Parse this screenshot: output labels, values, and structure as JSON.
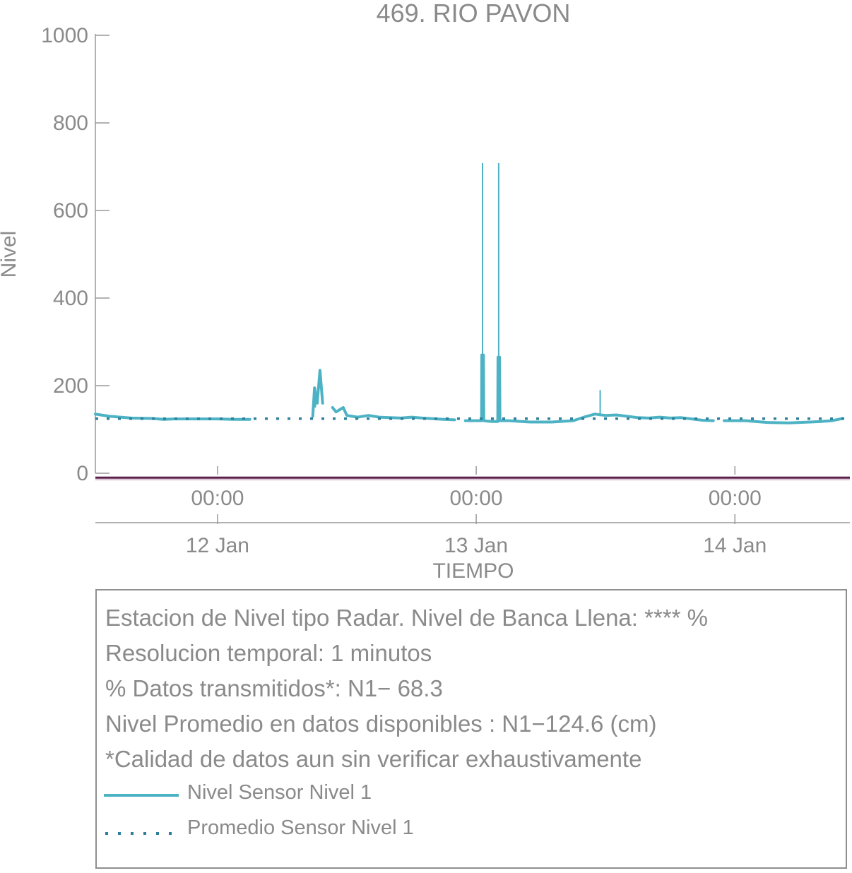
{
  "chart_data": {
    "type": "line",
    "title": "469. RIO PAVON",
    "xlabel": "TIEMPO",
    "ylabel": "Nivel",
    "ylim": [
      0,
      1000
    ],
    "yticks": [
      0,
      200,
      400,
      600,
      800,
      1000
    ],
    "xlim": [
      "2025-01-11 12:40",
      "2025-01-14 10:40"
    ],
    "xticks": [
      {
        "time": "2025-01-12 00:00",
        "label": "00:00",
        "date_label": "12 Jan"
      },
      {
        "time": "2025-01-13 00:00",
        "label": "00:00",
        "date_label": "13 Jan"
      },
      {
        "time": "2025-01-14 00:00",
        "label": "00:00",
        "date_label": "14 Jan"
      }
    ],
    "grid": false,
    "series": [
      {
        "name": "Nivel Sensor Nivel 1",
        "color": "#4db3c4",
        "style": "solid",
        "segments": [
          [
            [
              "2025-01-11 12:40",
              135
            ],
            [
              "2025-01-11 13:10",
              133
            ],
            [
              "2025-01-11 14:00",
              130
            ],
            [
              "2025-01-11 16:00",
              126
            ],
            [
              "2025-01-11 18:00",
              125
            ],
            [
              "2025-01-11 19:00",
              123
            ],
            [
              "2025-01-11 20:00",
              124
            ],
            [
              "2025-01-11 22:00",
              124
            ],
            [
              "2025-01-12 00:00",
              124
            ],
            [
              "2025-01-12 01:30",
              123
            ],
            [
              "2025-01-12 03:00",
              123
            ]
          ],
          [
            [
              "2025-01-12 08:50",
              130
            ],
            [
              "2025-01-12 09:00",
              195
            ],
            [
              "2025-01-12 09:15",
              160
            ],
            [
              "2025-01-12 09:30",
              235
            ],
            [
              "2025-01-12 09:45",
              160
            ]
          ],
          [
            [
              "2025-01-12 10:40",
              150
            ],
            [
              "2025-01-12 11:00",
              140
            ],
            [
              "2025-01-12 11:40",
              150
            ],
            [
              "2025-01-12 12:00",
              132
            ],
            [
              "2025-01-12 13:00",
              128
            ],
            [
              "2025-01-12 14:00",
              132
            ],
            [
              "2025-01-12 15:00",
              128
            ],
            [
              "2025-01-12 17:00",
              126
            ],
            [
              "2025-01-12 18:00",
              128
            ],
            [
              "2025-01-12 19:00",
              126
            ],
            [
              "2025-01-12 21:00",
              123
            ],
            [
              "2025-01-12 22:00",
              122
            ]
          ],
          [
            [
              "2025-01-12 23:00",
              120
            ],
            [
              "2025-01-13 00:30",
              120
            ],
            [
              "2025-01-13 00:31",
              270
            ],
            [
              "2025-01-13 00:40",
              270
            ],
            [
              "2025-01-13 00:42",
              120
            ],
            [
              "2025-01-13 01:00",
              119
            ],
            [
              "2025-01-13 01:30",
              118
            ],
            [
              "2025-01-13 02:00",
              118
            ],
            [
              "2025-01-13 02:01",
              265
            ],
            [
              "2025-01-13 02:10",
              265
            ],
            [
              "2025-01-13 02:12",
              120
            ],
            [
              "2025-01-13 03:00",
              120
            ],
            [
              "2025-01-13 05:00",
              117
            ],
            [
              "2025-01-13 07:00",
              117
            ],
            [
              "2025-01-13 09:00",
              120
            ],
            [
              "2025-01-13 10:00",
              128
            ],
            [
              "2025-01-13 11:00",
              135
            ],
            [
              "2025-01-13 12:00",
              132
            ],
            [
              "2025-01-13 13:00",
              133
            ],
            [
              "2025-01-13 14:00",
              130
            ],
            [
              "2025-01-13 15:00",
              127
            ],
            [
              "2025-01-13 16:00",
              126
            ],
            [
              "2025-01-13 17:00",
              128
            ],
            [
              "2025-01-13 18:00",
              126
            ],
            [
              "2025-01-13 19:00",
              127
            ],
            [
              "2025-01-13 20:00",
              124
            ],
            [
              "2025-01-13 21:00",
              121
            ],
            [
              "2025-01-13 22:00",
              120
            ]
          ],
          [
            [
              "2025-01-13 23:00",
              120
            ],
            [
              "2025-01-14 01:00",
              120
            ],
            [
              "2025-01-14 03:00",
              116
            ],
            [
              "2025-01-14 05:00",
              115
            ],
            [
              "2025-01-14 07:00",
              117
            ],
            [
              "2025-01-14 08:00",
              118
            ],
            [
              "2025-01-14 09:00",
              120
            ],
            [
              "2025-01-14 10:00",
              125
            ]
          ]
        ],
        "spikes": [
          {
            "time": "2025-01-13 00:35",
            "from": 120,
            "to": 708
          },
          {
            "time": "2025-01-13 02:05",
            "from": 120,
            "to": 708
          },
          {
            "time": "2025-01-13 11:30",
            "from": 130,
            "to": 190
          },
          {
            "time": "2025-01-12 09:05",
            "from": 150,
            "to": 195
          }
        ]
      },
      {
        "name": "Promedio Sensor Nivel 1",
        "color": "#2e7f9c",
        "style": "dotted",
        "constant": 124.6
      }
    ],
    "baseline": {
      "value": -10,
      "color": "#5a1f4a"
    }
  },
  "info": {
    "line1": "Estacion de Nivel tipo Radar. Nivel de Banca Llena: **** %",
    "line2": "Resolucion temporal: 1 minutos",
    "line3": "% Datos transmitidos*: N1− 68.3",
    "line4": "Nivel Promedio en datos disponibles : N1−124.6 (cm)",
    "line5": "*Calidad de datos aun sin verificar exhaustivamente",
    "legend": [
      {
        "label": "Nivel Sensor Nivel 1",
        "color": "#4db3c4",
        "style": "solid"
      },
      {
        "label": "Promedio Sensor Nivel 1",
        "color": "#2e7f9c",
        "style": "dotted"
      }
    ]
  }
}
